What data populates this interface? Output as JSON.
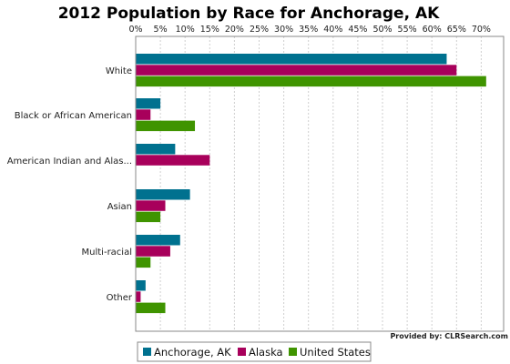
{
  "chart_data": {
    "type": "bar",
    "orientation": "horizontal",
    "title": "2012 Population by Race for Anchorage, AK",
    "xlabel": "",
    "ylabel": "",
    "xlim": [
      0,
      75
    ],
    "x_ticks": [
      "0%",
      "5%",
      "10%",
      "15%",
      "20%",
      "25%",
      "30%",
      "35%",
      "40%",
      "45%",
      "50%",
      "55%",
      "60%",
      "65%",
      "70%"
    ],
    "x_tick_values": [
      0,
      5,
      10,
      15,
      20,
      25,
      30,
      35,
      40,
      45,
      50,
      55,
      60,
      65,
      70
    ],
    "categories": [
      "White",
      "Black or African American",
      "American Indian and Alas...",
      "Asian",
      "Multi-racial",
      "Other"
    ],
    "series": [
      {
        "name": "Anchorage, AK",
        "color": "#00718f",
        "values": [
          63,
          5,
          8,
          11,
          9,
          2
        ]
      },
      {
        "name": "Alaska",
        "color": "#a8005b",
        "values": [
          65,
          3,
          15,
          6,
          7,
          1
        ]
      },
      {
        "name": "United States",
        "color": "#3f9400",
        "values": [
          71,
          12,
          0,
          5,
          3,
          6
        ]
      }
    ],
    "grid": true,
    "legend_position": "bottom",
    "credit": "Provided by: CLRSearch.com"
  }
}
